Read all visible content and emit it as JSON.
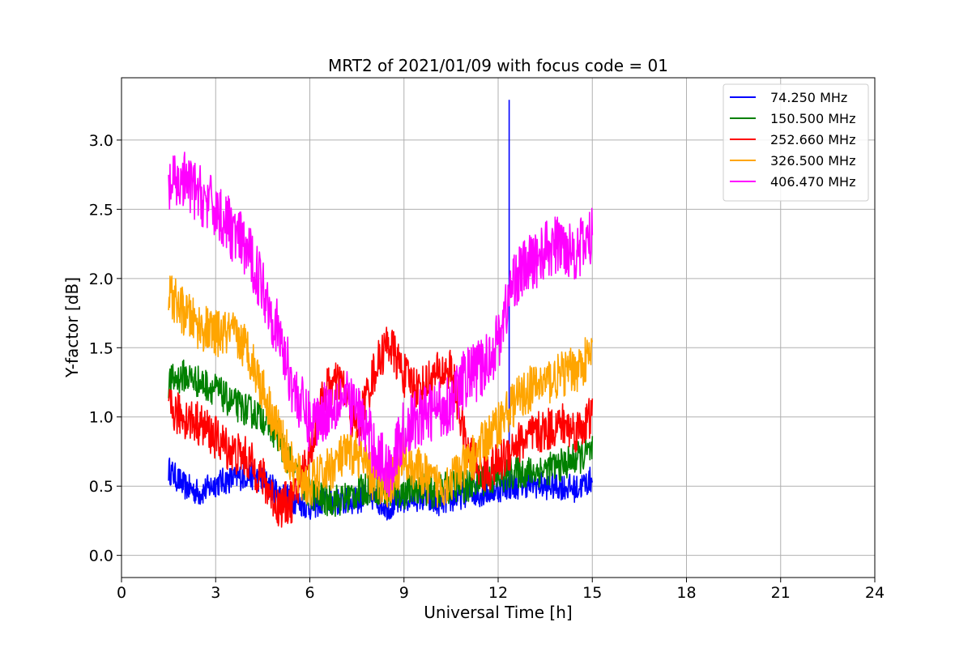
{
  "chart_data": {
    "type": "line",
    "title": "MRT2 of 2021/01/09 with focus code = 01",
    "xlabel": "Universal Time [h]",
    "ylabel": "Y-factor [dB]",
    "xlim": [
      0,
      24
    ],
    "ylim": [
      -0.16,
      3.45
    ],
    "xticks": [
      0,
      3,
      6,
      9,
      12,
      15,
      18,
      21,
      24
    ],
    "xtick_labels": [
      "0",
      "3",
      "6",
      "9",
      "12",
      "15",
      "18",
      "21",
      "24"
    ],
    "yticks": [
      0.0,
      0.5,
      1.0,
      1.5,
      2.0,
      2.5,
      3.0
    ],
    "ytick_labels": [
      "0.0",
      "0.5",
      "1.0",
      "1.5",
      "2.0",
      "2.5",
      "3.0"
    ],
    "grid": true,
    "legend_position": "top-right",
    "series": [
      {
        "name": " 74.250 MHz",
        "color": "#0000ff",
        "x": [
          1.5,
          2.0,
          2.5,
          3.0,
          3.5,
          4.0,
          4.5,
          5.0,
          5.5,
          6.0,
          6.5,
          7.0,
          7.5,
          8.0,
          8.5,
          9.0,
          9.5,
          10.0,
          10.5,
          11.0,
          11.5,
          12.0,
          12.3,
          12.5,
          13.0,
          13.5,
          14.0,
          14.5,
          15.0
        ],
        "values": [
          0.62,
          0.5,
          0.45,
          0.52,
          0.55,
          0.58,
          0.55,
          0.45,
          0.4,
          0.35,
          0.4,
          0.38,
          0.4,
          0.42,
          0.35,
          0.4,
          0.42,
          0.38,
          0.4,
          0.45,
          0.45,
          0.48,
          0.5,
          0.5,
          0.52,
          0.5,
          0.5,
          0.48,
          0.55
        ],
        "noise": 0.1,
        "spikes": [
          {
            "x": 12.35,
            "y": 3.29
          }
        ]
      },
      {
        "name": "150.500 MHz",
        "color": "#008000",
        "x": [
          1.5,
          2.0,
          2.5,
          3.0,
          3.5,
          4.0,
          4.5,
          5.0,
          5.5,
          6.0,
          6.5,
          7.0,
          7.5,
          8.0,
          8.5,
          9.0,
          9.5,
          10.0,
          10.5,
          11.0,
          11.5,
          12.0,
          12.5,
          13.0,
          13.5,
          14.0,
          14.5,
          15.0
        ],
        "values": [
          1.25,
          1.3,
          1.25,
          1.2,
          1.1,
          1.05,
          1.0,
          0.85,
          0.6,
          0.45,
          0.4,
          0.4,
          0.45,
          0.5,
          0.45,
          0.45,
          0.5,
          0.45,
          0.5,
          0.5,
          0.55,
          0.55,
          0.6,
          0.6,
          0.62,
          0.65,
          0.7,
          0.75
        ],
        "noise": 0.12
      },
      {
        "name": "252.660 MHz",
        "color": "#ff0000",
        "x": [
          1.5,
          2.0,
          2.5,
          3.0,
          3.5,
          4.0,
          4.5,
          5.0,
          5.5,
          6.0,
          6.5,
          7.0,
          7.5,
          8.0,
          8.5,
          9.0,
          9.5,
          10.0,
          10.5,
          11.0,
          11.5,
          12.0,
          12.5,
          13.0,
          13.5,
          14.0,
          14.5,
          15.0
        ],
        "values": [
          1.05,
          1.0,
          0.95,
          0.85,
          0.75,
          0.7,
          0.55,
          0.35,
          0.4,
          0.75,
          1.2,
          1.25,
          0.9,
          1.3,
          1.55,
          1.3,
          1.2,
          1.3,
          1.35,
          0.75,
          0.6,
          0.65,
          0.8,
          0.85,
          0.9,
          0.95,
          0.9,
          1.0
        ],
        "noise": 0.16
      },
      {
        "name": "326.500 MHz",
        "color": "#ffa500",
        "x": [
          1.5,
          2.0,
          2.5,
          3.0,
          3.5,
          4.0,
          4.5,
          5.0,
          5.5,
          6.0,
          6.5,
          7.0,
          7.5,
          8.0,
          8.5,
          9.0,
          9.5,
          10.0,
          10.5,
          11.0,
          11.5,
          12.0,
          12.5,
          13.0,
          13.5,
          14.0,
          14.5,
          15.0
        ],
        "values": [
          1.9,
          1.75,
          1.65,
          1.6,
          1.6,
          1.5,
          1.2,
          0.9,
          0.6,
          0.5,
          0.6,
          0.7,
          0.75,
          0.55,
          0.5,
          0.7,
          0.6,
          0.5,
          0.55,
          0.65,
          0.8,
          0.95,
          1.1,
          1.2,
          1.25,
          1.3,
          1.35,
          1.45
        ],
        "noise": 0.17
      },
      {
        "name": "406.470 MHz",
        "color": "#ff00ff",
        "x": [
          1.5,
          2.0,
          2.5,
          3.0,
          3.5,
          4.0,
          4.5,
          5.0,
          5.5,
          6.0,
          6.5,
          7.0,
          7.5,
          8.0,
          8.5,
          9.0,
          9.5,
          10.0,
          10.5,
          11.0,
          11.5,
          12.0,
          12.5,
          13.0,
          13.5,
          14.0,
          14.5,
          15.0
        ],
        "values": [
          2.65,
          2.7,
          2.6,
          2.5,
          2.35,
          2.2,
          1.95,
          1.6,
          1.2,
          0.95,
          1.05,
          1.15,
          1.05,
          0.8,
          0.6,
          0.9,
          1.0,
          1.05,
          1.1,
          1.3,
          1.35,
          1.55,
          2.0,
          2.1,
          2.2,
          2.25,
          2.2,
          2.3
        ],
        "noise": 0.22
      }
    ]
  }
}
